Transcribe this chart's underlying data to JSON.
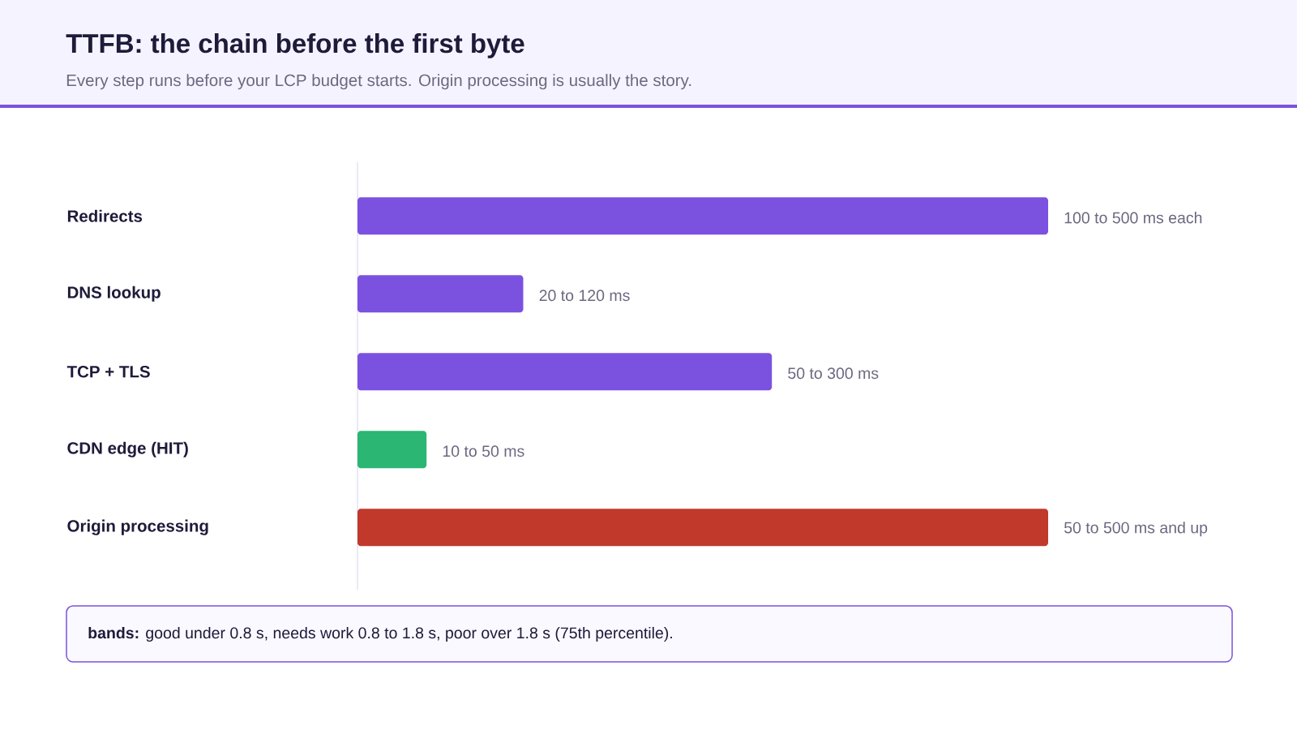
{
  "chart_data": {
    "type": "bar",
    "orientation": "horizontal",
    "xlim": [
      0,
      500
    ],
    "title": "TTFB: the chain before the first byte",
    "subtitle": "Every step runs before your LCP budget starts. Origin processing is usually the story.",
    "categories": [
      "Redirects",
      "DNS lookup",
      "TCP + TLS",
      "CDN edge (HIT)",
      "Origin processing"
    ],
    "values": [
      500,
      120,
      300,
      50,
      500
    ],
    "colors": [
      "#7b52e0",
      "#7b52e0",
      "#7b52e0",
      "#2bb673",
      "#c0392b"
    ],
    "value_labels": [
      "100 to 500 ms each",
      "20 to 120 ms",
      "50 to 300 ms",
      "10 to 50 ms",
      "50 to 500 ms and up"
    ],
    "annotations": [
      "**bands:** good under 0.8 s, needs work 0.8 to 1.8 s, poor over 1.8 s (75th percentile)."
    ]
  }
}
